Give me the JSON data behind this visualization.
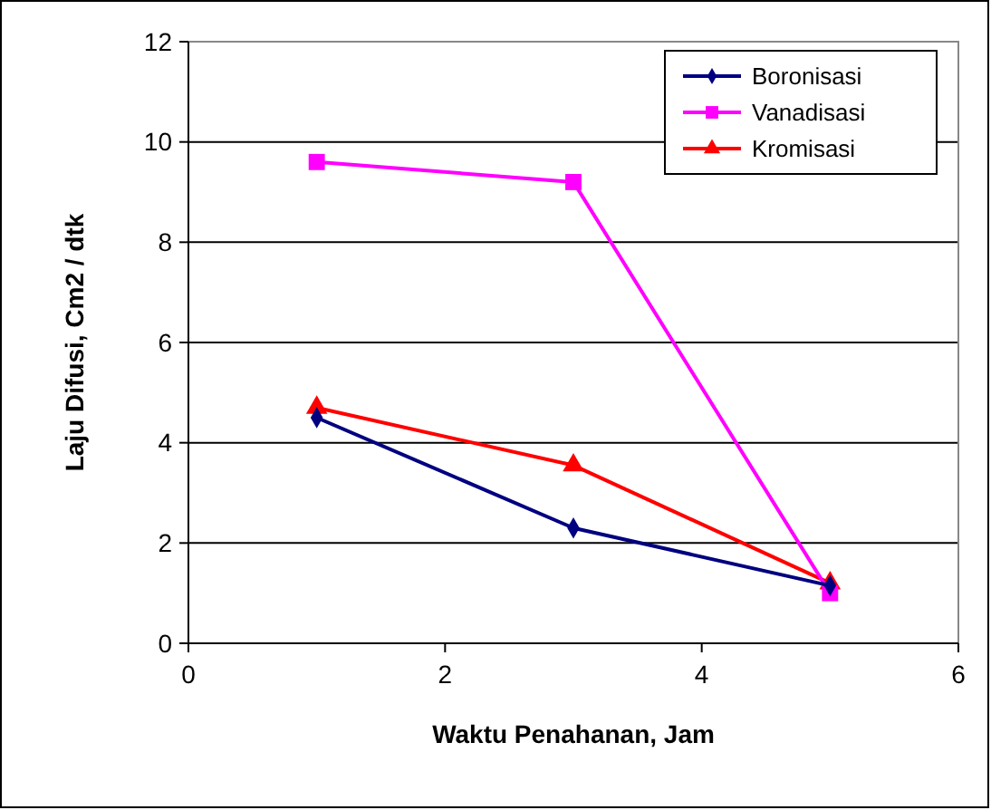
{
  "chart_data": {
    "type": "line",
    "xlabel": "Waktu Penahanan, Jam",
    "ylabel": "Laju Difusi, Cm2 / dtk",
    "x": [
      1,
      3,
      5
    ],
    "series": [
      {
        "name": "Boronisasi",
        "color": "#000080",
        "marker": "diamond",
        "values": [
          4.5,
          2.3,
          1.15
        ]
      },
      {
        "name": "Vanadisasi",
        "color": "#ff00ff",
        "marker": "square",
        "values": [
          9.6,
          9.2,
          1.0
        ]
      },
      {
        "name": "Kromisasi",
        "color": "#ff0000",
        "marker": "triangle",
        "values": [
          4.7,
          3.55,
          1.2
        ]
      }
    ],
    "xlim": [
      0,
      6
    ],
    "xticks": [
      0,
      2,
      4,
      6
    ],
    "ylim": [
      0,
      12
    ],
    "yticks": [
      0,
      2,
      4,
      6,
      8,
      10,
      12
    ],
    "grid": "y",
    "legend": "top right"
  }
}
